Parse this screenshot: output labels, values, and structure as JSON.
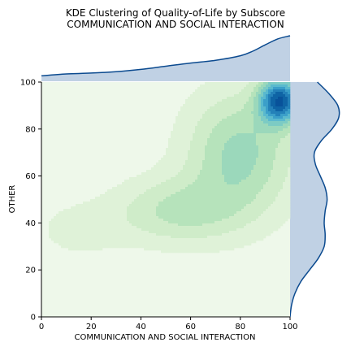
{
  "chart_data": {
    "type": "kde_joint",
    "title": "KDE Clustering of Quality-of-Life by Subscore",
    "subtitle": "COMMUNICATION AND SOCIAL INTERACTION",
    "xlabel": "COMMUNICATION AND SOCIAL INTERACTION",
    "ylabel": "OTHER",
    "xlim": [
      0,
      100
    ],
    "ylim": [
      0,
      100
    ],
    "xticks": [
      "0",
      "20",
      "40",
      "60",
      "80",
      "100"
    ],
    "yticks": [
      "0",
      "20",
      "40",
      "60",
      "80",
      "100"
    ],
    "grid": false,
    "colormap": "GnBu",
    "background_color": "#eef8ea",
    "marginal_color": "#0b4a8f",
    "marginal_fill": "#c0d1e4",
    "density_components": [
      {
        "mean_x": 96,
        "mean_y": 92,
        "sd_x": 6,
        "sd_y": 7,
        "weight": 1.0
      },
      {
        "mean_x": 80,
        "mean_y": 70,
        "sd_x": 15,
        "sd_y": 18,
        "weight": 0.45
      },
      {
        "mean_x": 55,
        "mean_y": 45,
        "sd_x": 18,
        "sd_y": 10,
        "weight": 0.32
      },
      {
        "mean_x": 15,
        "mean_y": 37,
        "sd_x": 12,
        "sd_y": 8,
        "weight": 0.12
      }
    ],
    "contour_levels": 10,
    "x_marginal": {
      "x": [
        0,
        10,
        20,
        30,
        40,
        50,
        60,
        70,
        80,
        85,
        90,
        95,
        100
      ],
      "density": [
        0.12,
        0.16,
        0.18,
        0.21,
        0.26,
        0.33,
        0.4,
        0.46,
        0.56,
        0.66,
        0.8,
        0.93,
        1.0
      ]
    },
    "y_marginal": {
      "y": [
        0,
        5,
        10,
        15,
        20,
        25,
        30,
        35,
        40,
        45,
        50,
        55,
        60,
        65,
        70,
        75,
        80,
        85,
        90,
        95,
        100
      ],
      "density": [
        0.0,
        0.03,
        0.1,
        0.22,
        0.4,
        0.58,
        0.7,
        0.72,
        0.7,
        0.72,
        0.76,
        0.72,
        0.62,
        0.52,
        0.5,
        0.64,
        0.86,
        1.0,
        0.98,
        0.8,
        0.56
      ]
    }
  }
}
